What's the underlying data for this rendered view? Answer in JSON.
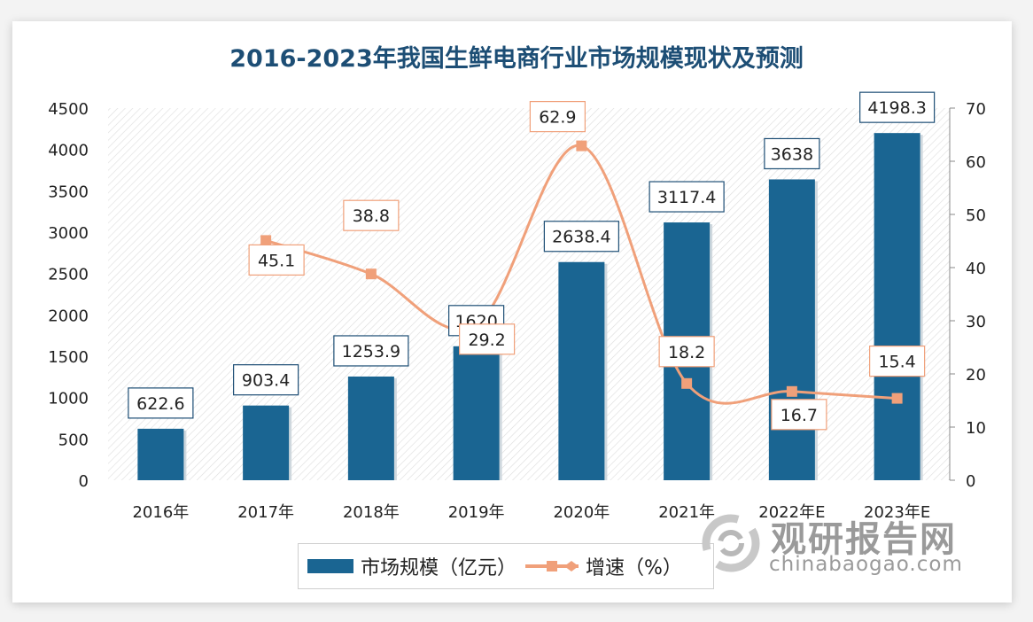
{
  "chart_data": {
    "type": "bar+line",
    "title": "2016-2023年我国生鲜电商行业市场规模现状及预测",
    "categories": [
      "2016年",
      "2017年",
      "2018年",
      "2019年",
      "2020年",
      "2021年",
      "2022年E",
      "2023年E"
    ],
    "series": [
      {
        "name": "市场规模（亿元）",
        "type": "bar",
        "axis": "left",
        "color": "#1a6592",
        "values": [
          622.6,
          903.4,
          1253.9,
          1620,
          2638.4,
          3117.4,
          3638,
          4198.3
        ],
        "labels": [
          "622.6",
          "903.4",
          "1253.9",
          "1620",
          "2638.4",
          "3117.4",
          "3638",
          "4198.3"
        ]
      },
      {
        "name": "增速（%）",
        "type": "line",
        "axis": "right",
        "color": "#f0a07a",
        "values": [
          null,
          45.1,
          38.8,
          29.2,
          62.9,
          18.2,
          16.7,
          15.4
        ],
        "labels": [
          "",
          "45.1",
          "38.8",
          "29.2",
          "62.9",
          "18.2",
          "16.7",
          "15.4"
        ]
      }
    ],
    "y_left": {
      "range": [
        0,
        4500
      ],
      "ticks": [
        "0",
        "500",
        "1000",
        "1500",
        "2000",
        "2500",
        "3000",
        "3500",
        "4000",
        "4500"
      ]
    },
    "y_right": {
      "range": [
        0,
        70
      ],
      "ticks": [
        "0",
        "10",
        "20",
        "30",
        "40",
        "50",
        "60",
        "70"
      ]
    },
    "grid": false,
    "legend_position": "bottom"
  },
  "legend": {
    "bar": "市场规模（亿元）",
    "line": "增速（%）"
  },
  "watermark": {
    "name": "观研报告网",
    "url": "chinabaogao.com"
  }
}
